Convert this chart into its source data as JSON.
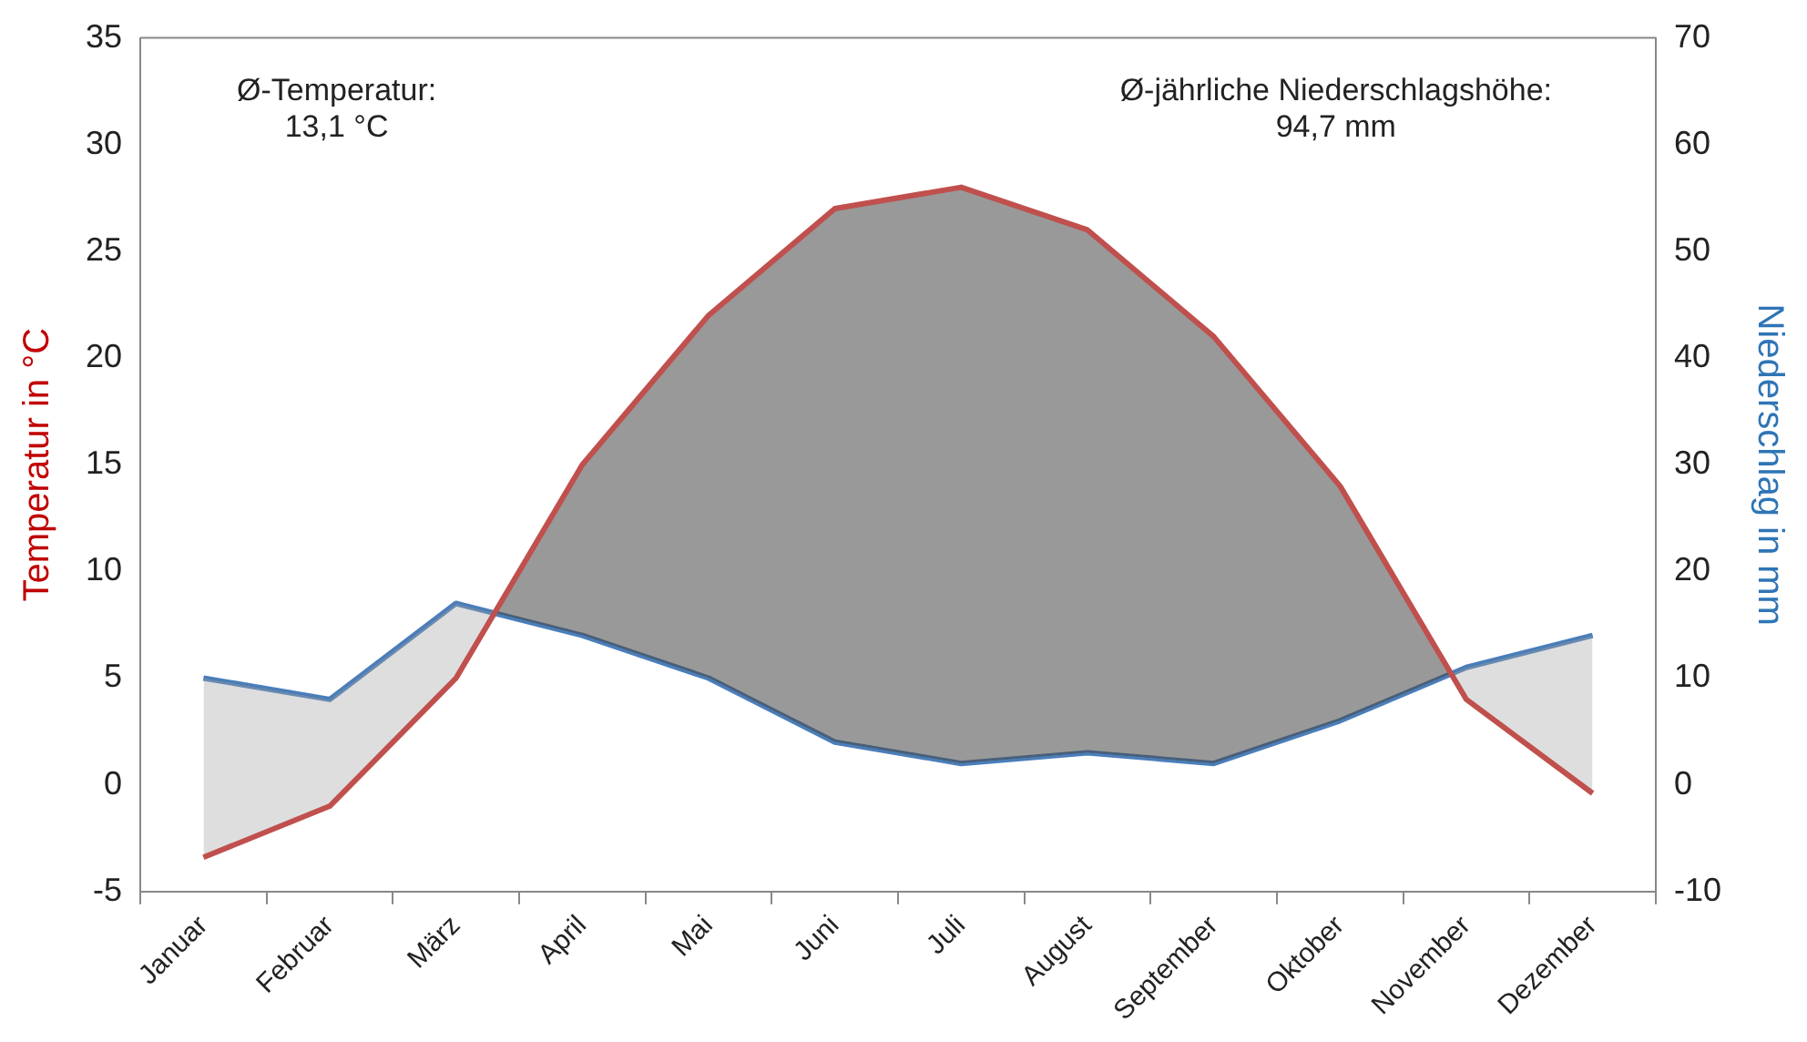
{
  "chart_data": {
    "type": "line",
    "categories": [
      "Januar",
      "Februar",
      "März",
      "April",
      "Mai",
      "Juni",
      "Juli",
      "August",
      "September",
      "Oktober",
      "November",
      "Dezember"
    ],
    "ylabel": "Temperatur in °C",
    "y2label": "Niederschlag in mm",
    "series": [
      {
        "color": "#c0504d",
        "values": [
          -3.4,
          -1,
          5,
          15,
          22,
          27,
          28,
          26,
          21,
          14,
          4,
          -0.4
        ]
      },
      {
        "color": "#4a7ebb",
        "axis": "y2",
        "values": [
          10,
          8,
          17,
          14,
          10,
          4,
          2,
          3,
          2,
          6,
          11,
          14
        ]
      }
    ],
    "ylim": [
      -5,
      35
    ],
    "yticks": [
      -5,
      0,
      5,
      10,
      15,
      20,
      25,
      30,
      35
    ],
    "y2lim": [
      -10,
      70
    ],
    "y2ticks": [
      -10,
      0,
      10,
      20,
      30,
      40,
      50,
      60,
      70
    ],
    "annotations": [
      "Ø-Temperatur:\n13,1 °C",
      "Ø-jährliche Niederschlagshöhe:\n94,7 mm"
    ],
    "grid": false,
    "legend": false,
    "marker": "none",
    "line_style": "solid"
  }
}
